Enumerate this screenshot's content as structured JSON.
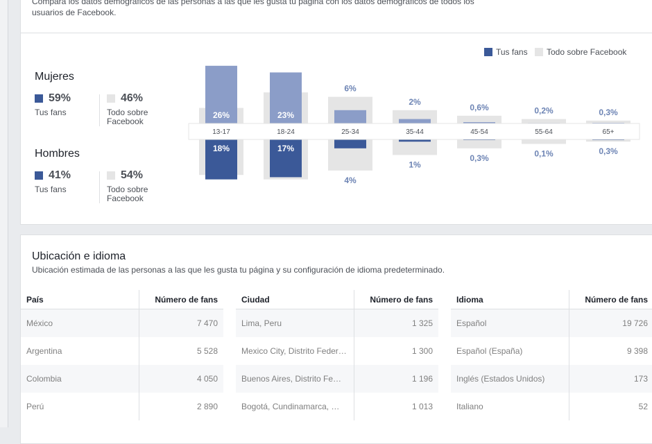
{
  "header": {
    "description": "Compara los datos demográficos de las personas a las que les gusta tu página con los datos demográficos de todos los usuarios de Facebook."
  },
  "summary": [
    {
      "title": "Mujeres",
      "fans": "59%",
      "fans_label": "Tus fans",
      "all": "46%",
      "all_label": "Todo sobre Facebook"
    },
    {
      "title": "Hombres",
      "fans": "41%",
      "fans_label": "Tus fans",
      "all": "54%",
      "all_label": "Todo sobre Facebook"
    }
  ],
  "chart_data": {
    "type": "bar",
    "legend": "top-right",
    "categories": [
      "13-17",
      "18-24",
      "25-34",
      "35-44",
      "45-54",
      "55-64",
      "65+"
    ],
    "series": [
      {
        "name": "Tus fans",
        "colors": {
          "women": "#8b9dc8",
          "men": "#3b5998"
        },
        "women": [
          26,
          23,
          6,
          2,
          0.6,
          0.2,
          0.3
        ],
        "women_labels": [
          "26%",
          "23%",
          "6%",
          "2%",
          "0,6%",
          "0,2%",
          "0,3%"
        ],
        "men": [
          18,
          17,
          4,
          1,
          0.3,
          0.1,
          0.3
        ],
        "men_labels": [
          "18%",
          "17%",
          "4%",
          "1%",
          "0,3%",
          "0,1%",
          "0,3%"
        ]
      },
      {
        "name": "Todo sobre Facebook",
        "color": "#e5e5e5",
        "women": [
          7,
          14,
          12,
          6,
          3.5,
          2,
          1.3
        ],
        "men": [
          16,
          18,
          14,
          7,
          4,
          2,
          1
        ]
      }
    ]
  },
  "location": {
    "title": "Ubicación e idioma",
    "subtitle": "Ubicación estimada de las personas a las que les gusta tu página y su configuración de idioma predeterminado.",
    "tables": [
      {
        "headers": [
          "País",
          "Número de fans"
        ],
        "rows": [
          [
            "México",
            "7 470"
          ],
          [
            "Argentina",
            "5 528"
          ],
          [
            "Colombia",
            "4 050"
          ],
          [
            "Perú",
            "2 890"
          ]
        ]
      },
      {
        "headers": [
          "Ciudad",
          "Número de fans"
        ],
        "rows": [
          [
            "Lima, Peru",
            "1 325"
          ],
          [
            "Mexico City, Distrito Feder…",
            "1 300"
          ],
          [
            "Buenos Aires, Distrito Fe…",
            "1 196"
          ],
          [
            "Bogotá, Cundinamarca, …",
            "1 013"
          ]
        ]
      },
      {
        "headers": [
          "Idioma",
          "Número de fans"
        ],
        "rows": [
          [
            "Español",
            "19 726"
          ],
          [
            "Español (España)",
            "9 398"
          ],
          [
            "Inglés (Estados Unidos)",
            "173"
          ],
          [
            "Italiano",
            "52"
          ]
        ]
      }
    ]
  }
}
